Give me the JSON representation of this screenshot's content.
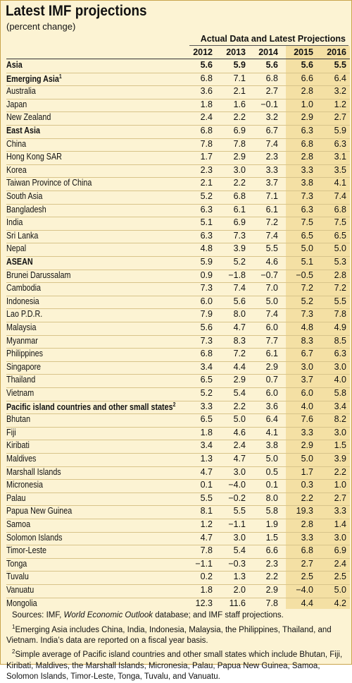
{
  "header": {
    "title": "Latest IMF projections",
    "subtitle": "(percent change)"
  },
  "table": {
    "group_header": "Actual Data and Latest Projections",
    "columns": [
      "2012",
      "2013",
      "2014",
      "2015",
      "2016"
    ],
    "rows": [
      {
        "name": "Asia",
        "bold": true,
        "bold_values": true,
        "values": [
          "5.6",
          "5.9",
          "5.6",
          "5.6",
          "5.5"
        ]
      },
      {
        "name": "Emerging Asia",
        "note": "1",
        "bold": true,
        "values": [
          "6.8",
          "7.1",
          "6.8",
          "6.6",
          "6.4"
        ]
      },
      {
        "name": "Australia",
        "values": [
          "3.6",
          "2.1",
          "2.7",
          "2.8",
          "3.2"
        ]
      },
      {
        "name": "Japan",
        "values": [
          "1.8",
          "1.6",
          "−0.1",
          "1.0",
          "1.2"
        ]
      },
      {
        "name": "New Zealand",
        "values": [
          "2.4",
          "2.2",
          "3.2",
          "2.9",
          "2.7"
        ]
      },
      {
        "name": "East Asia",
        "bold": true,
        "values": [
          "6.8",
          "6.9",
          "6.7",
          "6.3",
          "5.9"
        ]
      },
      {
        "name": "China",
        "values": [
          "7.8",
          "7.8",
          "7.4",
          "6.8",
          "6.3"
        ]
      },
      {
        "name": "Hong Kong SAR",
        "values": [
          "1.7",
          "2.9",
          "2.3",
          "2.8",
          "3.1"
        ]
      },
      {
        "name": "Korea",
        "values": [
          "2.3",
          "3.0",
          "3.3",
          "3.3",
          "3.5"
        ]
      },
      {
        "name": "Taiwan Province of China",
        "values": [
          "2.1",
          "2.2",
          "3.7",
          "3.8",
          "4.1"
        ]
      },
      {
        "name": "South Asia",
        "values": [
          "5.2",
          "6.8",
          "7.1",
          "7.3",
          "7.4"
        ]
      },
      {
        "name": "Bangladesh",
        "values": [
          "6.3",
          "6.1",
          "6.1",
          "6.3",
          "6.8"
        ]
      },
      {
        "name": "India",
        "values": [
          "5.1",
          "6.9",
          "7.2",
          "7.5",
          "7.5"
        ]
      },
      {
        "name": "Sri Lanka",
        "values": [
          "6.3",
          "7.3",
          "7.4",
          "6.5",
          "6.5"
        ]
      },
      {
        "name": "Nepal",
        "values": [
          "4.8",
          "3.9",
          "5.5",
          "5.0",
          "5.0"
        ]
      },
      {
        "name": "ASEAN",
        "bold": true,
        "values": [
          "5.9",
          "5.2",
          "4.6",
          "5.1",
          "5.3"
        ]
      },
      {
        "name": "Brunei Darussalam",
        "values": [
          "0.9",
          "−1.8",
          "−0.7",
          "−0.5",
          "2.8"
        ]
      },
      {
        "name": "Cambodia",
        "values": [
          "7.3",
          "7.4",
          "7.0",
          "7.2",
          "7.2"
        ]
      },
      {
        "name": "Indonesia",
        "values": [
          "6.0",
          "5.6",
          "5.0",
          "5.2",
          "5.5"
        ]
      },
      {
        "name": "Lao P.D.R.",
        "values": [
          "7.9",
          "8.0",
          "7.4",
          "7.3",
          "7.8"
        ]
      },
      {
        "name": "Malaysia",
        "values": [
          "5.6",
          "4.7",
          "6.0",
          "4.8",
          "4.9"
        ]
      },
      {
        "name": "Myanmar",
        "values": [
          "7.3",
          "8.3",
          "7.7",
          "8.3",
          "8.5"
        ]
      },
      {
        "name": "Philippines",
        "values": [
          "6.8",
          "7.2",
          "6.1",
          "6.7",
          "6.3"
        ]
      },
      {
        "name": "Singapore",
        "values": [
          "3.4",
          "4.4",
          "2.9",
          "3.0",
          "3.0"
        ]
      },
      {
        "name": "Thailand",
        "values": [
          "6.5",
          "2.9",
          "0.7",
          "3.7",
          "4.0"
        ]
      },
      {
        "name": "Vietnam",
        "values": [
          "5.2",
          "5.4",
          "6.0",
          "6.0",
          "5.8"
        ]
      },
      {
        "name": "Pacific island countries and other small states",
        "note": "2",
        "bold": true,
        "values": [
          "3.3",
          "2.2",
          "3.6",
          "4.0",
          "3.4"
        ]
      },
      {
        "name": "Bhutan",
        "values": [
          "6.5",
          "5.0",
          "6.4",
          "7.6",
          "8.2"
        ]
      },
      {
        "name": "Fiji",
        "values": [
          "1.8",
          "4.6",
          "4.1",
          "3.3",
          "3.0"
        ]
      },
      {
        "name": "Kiribati",
        "values": [
          "3.4",
          "2.4",
          "3.8",
          "2.9",
          "1.5"
        ]
      },
      {
        "name": "Maldives",
        "values": [
          "1.3",
          "4.7",
          "5.0",
          "5.0",
          "3.9"
        ]
      },
      {
        "name": "Marshall Islands",
        "values": [
          "4.7",
          "3.0",
          "0.5",
          "1.7",
          "2.2"
        ]
      },
      {
        "name": "Micronesia",
        "values": [
          "0.1",
          "−4.0",
          "0.1",
          "0.3",
          "1.0"
        ]
      },
      {
        "name": "Palau",
        "values": [
          "5.5",
          "−0.2",
          "8.0",
          "2.2",
          "2.7"
        ]
      },
      {
        "name": "Papua New Guinea",
        "values": [
          "8.1",
          "5.5",
          "5.8",
          "19.3",
          "3.3"
        ]
      },
      {
        "name": "Samoa",
        "values": [
          "1.2",
          "−1.1",
          "1.9",
          "2.8",
          "1.4"
        ]
      },
      {
        "name": "Solomon Islands",
        "values": [
          "4.7",
          "3.0",
          "1.5",
          "3.3",
          "3.0"
        ]
      },
      {
        "name": "Timor-Leste",
        "values": [
          "7.8",
          "5.4",
          "6.6",
          "6.8",
          "6.9"
        ]
      },
      {
        "name": "Tonga",
        "values": [
          "−1.1",
          "−0.3",
          "2.3",
          "2.7",
          "2.4"
        ]
      },
      {
        "name": "Tuvalu",
        "values": [
          "0.2",
          "1.3",
          "2.2",
          "2.5",
          "2.5"
        ]
      },
      {
        "name": "Vanuatu",
        "values": [
          "1.8",
          "2.0",
          "2.9",
          "−4.0",
          "5.0"
        ]
      },
      {
        "name": "Mongolia",
        "values": [
          "12.3",
          "11.6",
          "7.8",
          "4.4",
          "4.2"
        ]
      }
    ]
  },
  "notes": {
    "sources": {
      "before": "Sources: IMF, ",
      "italic": "World Economic Outlook",
      "after": " database; and IMF staff projections."
    },
    "footnotes": [
      {
        "marker": "1",
        "text": "Emerging Asia includes China, India, Indonesia, Malaysia, the Philippines, Thailand, and Vietnam. India’s data are reported on a fiscal year basis."
      },
      {
        "marker": "2",
        "text": "Simple average of Pacific island countries and other small states which include Bhutan, Fiji, Kiribati, Maldives, the Marshall Islands, Micronesia, Palau, Papua New Guinea, Samoa, Solomon Islands, Timor-Leste, Tonga, Tuvalu, and Vanuatu."
      }
    ]
  }
}
